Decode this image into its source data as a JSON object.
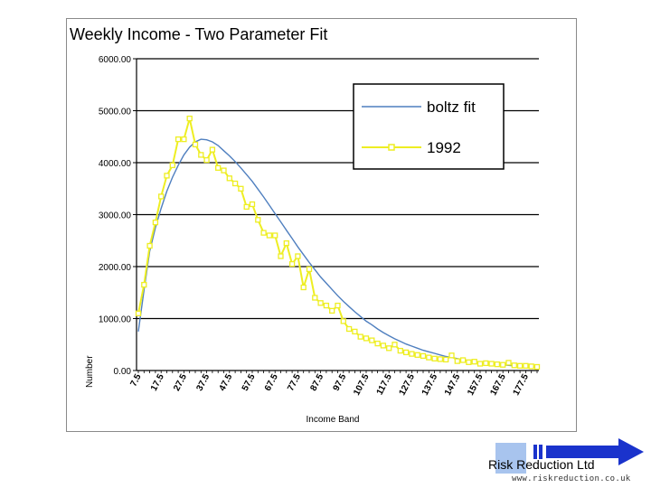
{
  "chart_data": {
    "type": "line",
    "title": "Weekly Income - Two Parameter Fit",
    "xlabel": "Income Band",
    "ylabel": "Number",
    "ylim": [
      0,
      6000
    ],
    "yticks": [
      "0.00",
      "1000.00",
      "2000.00",
      "3000.00",
      "4000.00",
      "5000.00",
      "6000.00"
    ],
    "grid": "horizontal",
    "legend_position": "top-right",
    "n_points": 71,
    "xtick_labels": [
      "7.5",
      "17.5",
      "27.5",
      "37.5",
      "47.5",
      "57.5",
      "67.5",
      "77.5",
      "87.5",
      "97.5",
      "107.5",
      "117.5",
      "127.5",
      "137.5",
      "147.5",
      "157.5",
      "167.5",
      "177.5"
    ],
    "series": [
      {
        "name": "boltz fit",
        "style": "line",
        "color": "#4f7fbf",
        "values": [
          750,
          1550,
          2300,
          2750,
          3120,
          3450,
          3720,
          3950,
          4150,
          4300,
          4400,
          4450,
          4440,
          4400,
          4330,
          4230,
          4130,
          4020,
          3900,
          3770,
          3640,
          3490,
          3340,
          3180,
          3020,
          2860,
          2700,
          2540,
          2380,
          2230,
          2080,
          1940,
          1800,
          1680,
          1560,
          1440,
          1330,
          1230,
          1130,
          1040,
          950,
          880,
          800,
          730,
          670,
          610,
          560,
          510,
          470,
          430,
          390,
          360,
          330,
          300,
          270,
          250,
          230,
          210,
          190,
          175,
          160,
          145,
          130,
          120,
          110,
          100,
          90,
          82,
          75,
          68,
          62
        ]
      },
      {
        "name": "1992",
        "style": "line-markers",
        "color": "#eeee22",
        "values": [
          1100,
          1650,
          2400,
          2850,
          3350,
          3750,
          3950,
          4450,
          4450,
          4850,
          4350,
          4150,
          4050,
          4250,
          3900,
          3850,
          3700,
          3600,
          3500,
          3150,
          3200,
          2900,
          2650,
          2600,
          2600,
          2200,
          2450,
          2050,
          2200,
          1600,
          1950,
          1400,
          1300,
          1250,
          1150,
          1250,
          950,
          800,
          750,
          650,
          620,
          580,
          520,
          480,
          430,
          500,
          380,
          350,
          320,
          300,
          280,
          250,
          230,
          220,
          210,
          290,
          180,
          200,
          160,
          170,
          130,
          140,
          130,
          120,
          110,
          150,
          100,
          90,
          90,
          80,
          70
        ]
      }
    ]
  },
  "logo": {
    "name": "Risk Reduction Ltd",
    "url": "www.riskreduction.co.uk"
  }
}
